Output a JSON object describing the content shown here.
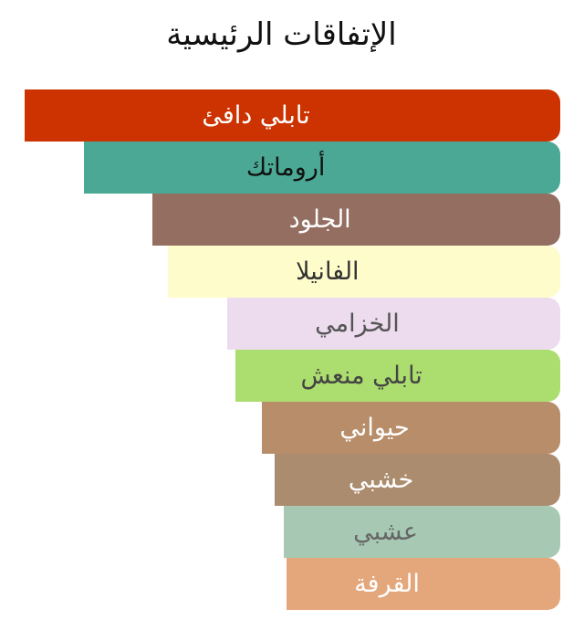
{
  "chart_data": {
    "type": "bar",
    "orientation": "horizontal",
    "title": "الإتفاقات الرئيسية",
    "categories": [
      "تابلي دافئ",
      "أروماتك",
      "الجلود",
      "الفانيلا",
      "الخزامي",
      "تابلي منعش",
      "حيواني",
      "خشبي",
      "عشبي",
      "القرفة"
    ],
    "values": [
      100,
      88.9,
      76.1,
      73.3,
      62.2,
      60.6,
      55.7,
      53.3,
      51.6,
      51.1
    ],
    "unit": "percent of strongest accord",
    "colors": [
      "#cc3300",
      "#4aa894",
      "#936e61",
      "#fffccc",
      "#ecdcee",
      "#acdd6f",
      "#b88d6a",
      "#ab8c6e",
      "#a7c9b4",
      "#e4a67b"
    ],
    "text_colors": [
      "#ffffff",
      "#111111",
      "#ffffff",
      "#333333",
      "#555555",
      "#444444",
      "#ffffff",
      "#ffffff",
      "#666666",
      "#ffffff"
    ],
    "grid": false,
    "legend": "none"
  }
}
